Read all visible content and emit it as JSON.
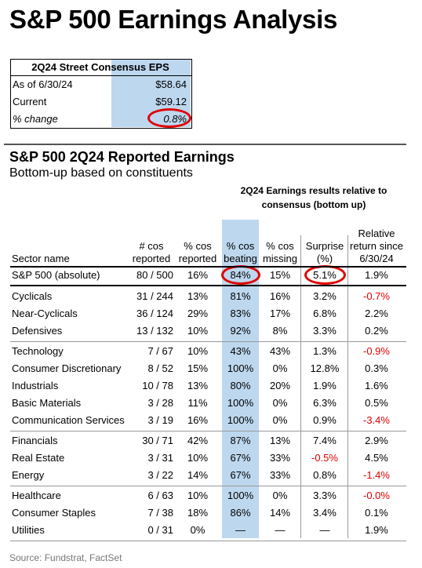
{
  "header": {
    "title": "S&P 500 Earnings Analysis"
  },
  "eps_box": {
    "title": "2Q24 Street Consensus EPS",
    "rows": [
      [
        "As of 6/30/24",
        "$58.64"
      ],
      [
        "Current",
        "$59.12"
      ],
      [
        "% change",
        "0.8%"
      ]
    ]
  },
  "section": {
    "title": "S&P 500 2Q24 Reported Earnings",
    "subtitle": "Bottom-up based on constituents"
  },
  "table": {
    "group_header": "2Q24 Earnings results relative to consensus (bottom up)",
    "columns": [
      "Sector name",
      "# cos reported",
      "% cos reported",
      "% cos beating",
      "% cos missing",
      "Surprise (%)",
      "Relative return since 6/30/24"
    ],
    "groups": [
      [
        [
          "S&P 500 (absolute)",
          "80 / 500",
          "16%",
          "84%",
          "15%",
          "5.1%",
          "1.9%"
        ]
      ],
      [
        [
          "Cyclicals",
          "31 / 244",
          "13%",
          "81%",
          "16%",
          "3.2%",
          "-0.7%"
        ],
        [
          "Near-Cyclicals",
          "36 / 124",
          "29%",
          "83%",
          "17%",
          "6.8%",
          "2.2%"
        ],
        [
          "Defensives",
          "13 / 132",
          "10%",
          "92%",
          "8%",
          "3.3%",
          "0.2%"
        ]
      ],
      [
        [
          "Technology",
          "7 / 67",
          "10%",
          "43%",
          "43%",
          "1.3%",
          "-0.9%"
        ],
        [
          "Consumer Discretionary",
          "8 / 52",
          "15%",
          "100%",
          "0%",
          "12.8%",
          "0.3%"
        ],
        [
          "Industrials",
          "10 / 78",
          "13%",
          "80%",
          "20%",
          "1.9%",
          "1.6%"
        ],
        [
          "Basic Materials",
          "3 / 28",
          "11%",
          "100%",
          "0%",
          "6.3%",
          "0.5%"
        ],
        [
          "Communication Services",
          "3 / 19",
          "16%",
          "100%",
          "0%",
          "0.9%",
          "-3.4%"
        ]
      ],
      [
        [
          "Financials",
          "30 / 71",
          "42%",
          "87%",
          "13%",
          "7.4%",
          "2.9%"
        ],
        [
          "Real Estate",
          "3 / 31",
          "10%",
          "67%",
          "33%",
          "-0.5%",
          "4.5%"
        ],
        [
          "Energy",
          "3 / 22",
          "14%",
          "67%",
          "33%",
          "0.8%",
          "-1.4%"
        ]
      ],
      [
        [
          "Healthcare",
          "6 / 63",
          "10%",
          "100%",
          "0%",
          "3.3%",
          "-0.0%"
        ],
        [
          "Consumer Staples",
          "7 / 38",
          "18%",
          "86%",
          "14%",
          "3.4%",
          "0.1%"
        ],
        [
          "Utilities",
          "0 / 31",
          "0%",
          "—",
          "—",
          "—",
          "1.9%"
        ]
      ]
    ]
  },
  "footer": {
    "source": "Source: Fundstrat, FactSet"
  }
}
